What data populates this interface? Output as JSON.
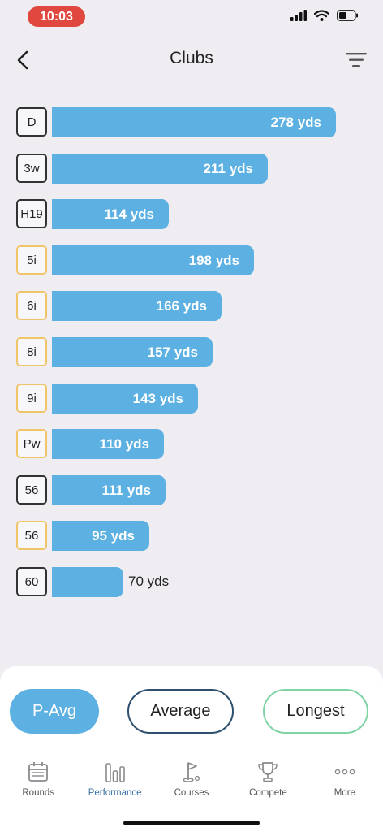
{
  "status_bar": {
    "time": "10:03"
  },
  "header": {
    "title": "Clubs"
  },
  "clubs": [
    {
      "name": "D",
      "distance": "278 yds",
      "yards": 278,
      "badge": "dark"
    },
    {
      "name": "3w",
      "distance": "211 yds",
      "yards": 211,
      "badge": "dark"
    },
    {
      "name": "H19",
      "distance": "114 yds",
      "yards": 114,
      "badge": "dark"
    },
    {
      "name": "5i",
      "distance": "198 yds",
      "yards": 198,
      "badge": "yellow"
    },
    {
      "name": "6i",
      "distance": "166 yds",
      "yards": 166,
      "badge": "yellow"
    },
    {
      "name": "8i",
      "distance": "157 yds",
      "yards": 157,
      "badge": "yellow"
    },
    {
      "name": "9i",
      "distance": "143 yds",
      "yards": 143,
      "badge": "yellow"
    },
    {
      "name": "Pw",
      "distance": "110 yds",
      "yards": 110,
      "badge": "yellow"
    },
    {
      "name": "56",
      "distance": "111 yds",
      "yards": 111,
      "badge": "dark"
    },
    {
      "name": "56",
      "distance": "95 yds",
      "yards": 95,
      "badge": "yellow"
    },
    {
      "name": "60",
      "distance": "70 yds",
      "yards": 70,
      "badge": "dark"
    }
  ],
  "segments": {
    "p_avg": "P-Avg",
    "average": "Average",
    "longest": "Longest"
  },
  "tabs": [
    {
      "label": "Rounds",
      "icon": "calendar-icon"
    },
    {
      "label": "Performance",
      "icon": "bar-chart-icon",
      "active": true
    },
    {
      "label": "Courses",
      "icon": "golf-flag-icon"
    },
    {
      "label": "Compete",
      "icon": "trophy-icon"
    },
    {
      "label": "More",
      "icon": "more-dots-icon"
    }
  ],
  "colors": {
    "bar": "#5cb0e2",
    "accent": "#5cb0e2",
    "time_pill": "#e0473e",
    "active_tab": "#3b6fa3"
  }
}
